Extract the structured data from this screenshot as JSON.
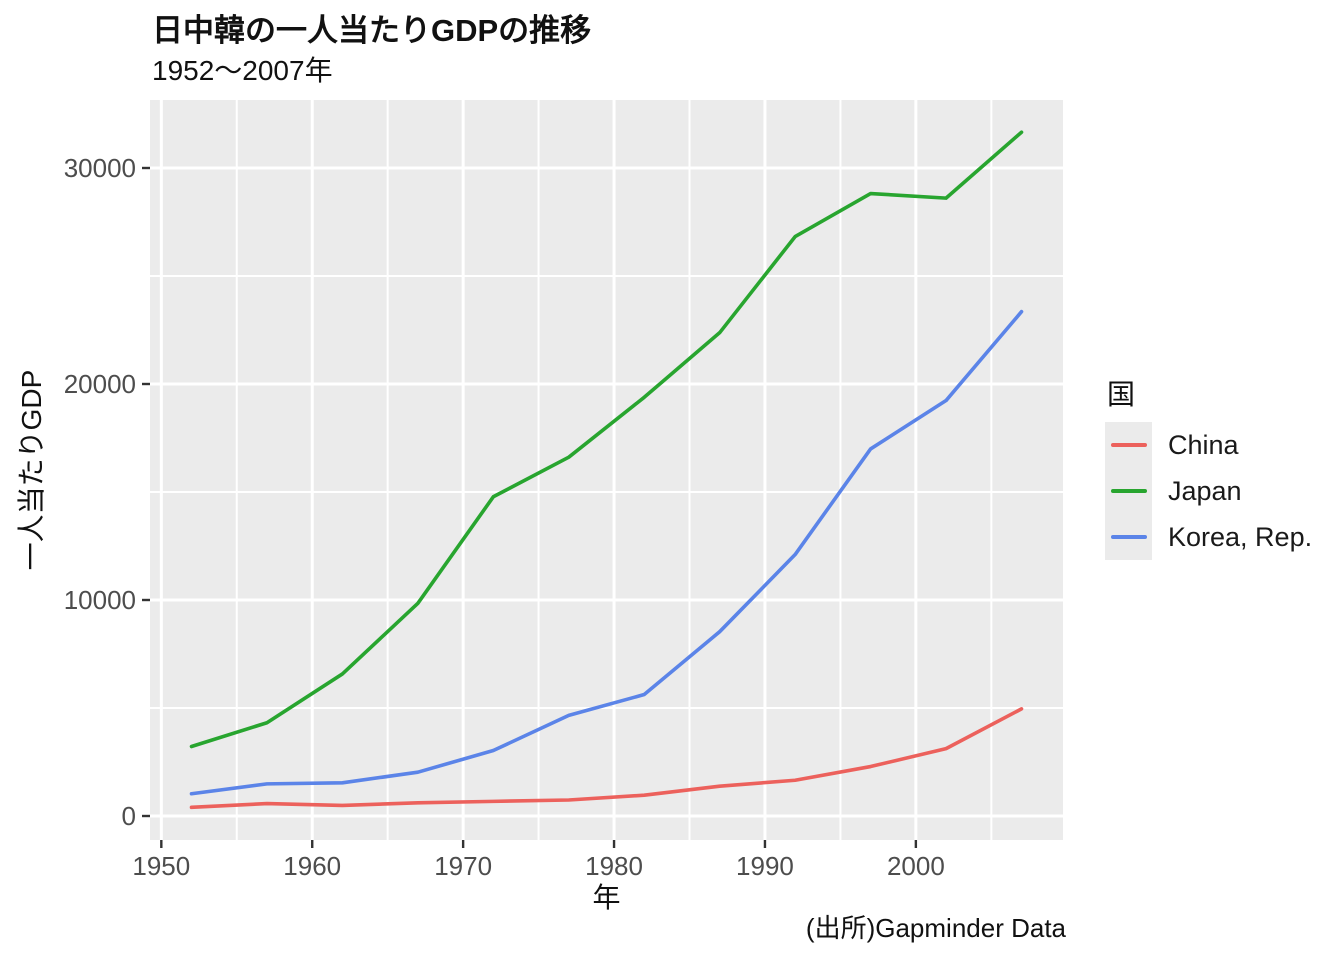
{
  "chart_data": {
    "type": "line",
    "title": "日中韓の一人当たりGDPの推移",
    "subtitle": "1952〜2007年",
    "caption": "(出所)Gapminder Data",
    "xlabel": "年",
    "ylabel": "一人当たりGDP",
    "legend_title": "国",
    "legend_position": "right",
    "x": [
      1952,
      1957,
      1962,
      1967,
      1972,
      1977,
      1982,
      1987,
      1992,
      1997,
      2002,
      2007
    ],
    "series": [
      {
        "name": "China",
        "color": "#EC615C",
        "values": [
          400.4,
          576.0,
          487.7,
          612.7,
          676.9,
          741.2,
          962.4,
          1378.9,
          1655.8,
          2289.2,
          3119.3,
          4959.1
        ]
      },
      {
        "name": "Japan",
        "color": "#28A52F",
        "values": [
          3217.0,
          4317.7,
          6576.6,
          9847.8,
          14778.8,
          16610.4,
          19384.1,
          22375.9,
          26824.9,
          28816.6,
          28604.6,
          31656.1
        ]
      },
      {
        "name": "Korea, Rep.",
        "color": "#5B84E8",
        "values": [
          1030.6,
          1487.6,
          1536.3,
          2029.2,
          3030.9,
          4657.2,
          5623.0,
          8533.1,
          12104.3,
          16993.8,
          19234.0,
          23348.1
        ]
      }
    ],
    "x_ticks": [
      1950,
      1960,
      1970,
      1980,
      1990,
      2000
    ],
    "x_minor_ticks": [
      1955,
      1965,
      1975,
      1985,
      1995,
      2005
    ],
    "y_ticks": [
      0,
      10000,
      20000,
      30000
    ],
    "y_minor_ticks": [
      5000,
      15000,
      25000
    ],
    "xlim": [
      1949.25,
      2009.75
    ],
    "ylim": [
      -1111,
      33148
    ],
    "grid": true,
    "panel_bg": "#EBEBEB",
    "grid_color": "#FFFFFF",
    "tick_mark_color": "#333333",
    "axis_text_color": "#4d4d4d"
  }
}
